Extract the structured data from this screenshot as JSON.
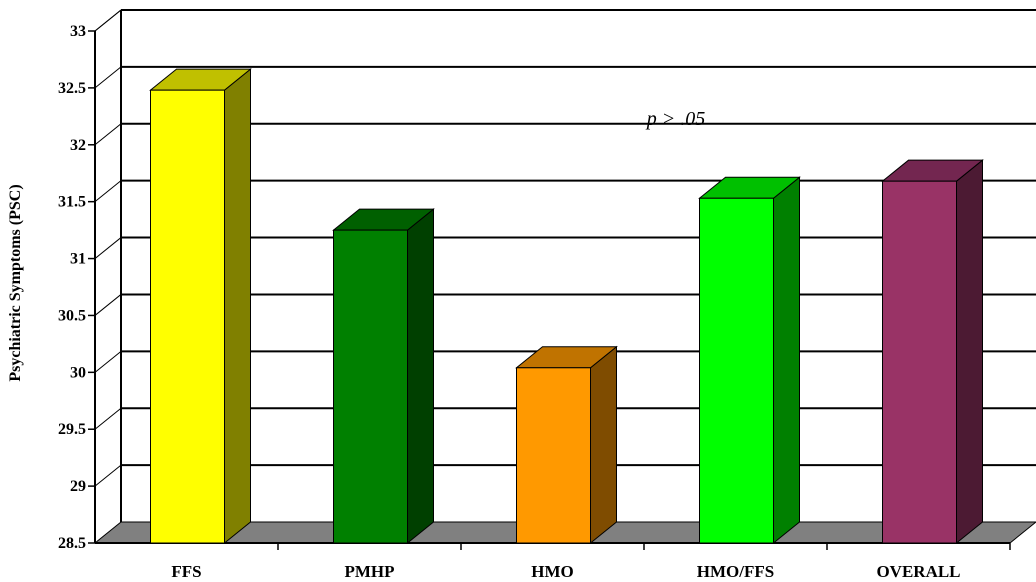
{
  "chart_data": {
    "type": "bar",
    "title": "",
    "xlabel": "",
    "ylabel": "Psychiatric Symptoms (PSC)",
    "categories": [
      "FFS",
      "PMHP",
      "HMO",
      "HMO/FFS",
      "OVERALL"
    ],
    "values": [
      32.48,
      31.25,
      30.04,
      31.53,
      31.68
    ],
    "ylim": [
      28.5,
      33
    ],
    "yticks": [
      "28.5",
      "29",
      "29.5",
      "30",
      "30.5",
      "31",
      "31.5",
      "32",
      "32.5",
      "33"
    ],
    "grid": true,
    "annotation": "p > .05",
    "colors": {
      "FFS": {
        "front": "#ffff00",
        "side": "#808000",
        "top": "#c0c000"
      },
      "PMHP": {
        "front": "#008000",
        "side": "#004000",
        "top": "#006000"
      },
      "HMO": {
        "front": "#ff9900",
        "side": "#7f4c00",
        "top": "#c07300"
      },
      "HMO/FFS": {
        "front": "#00ff00",
        "side": "#008000",
        "top": "#00c000"
      },
      "OVERALL": {
        "front": "#993366",
        "side": "#4c1a33",
        "top": "#732650"
      },
      "floor": "#808080",
      "wall_line": "#000000"
    }
  }
}
